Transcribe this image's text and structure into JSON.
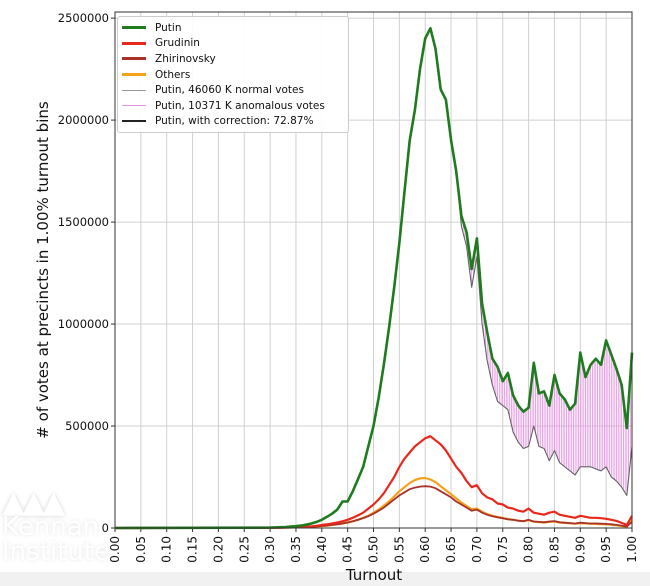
{
  "chart_data": {
    "type": "line",
    "xlabel": "Turnout",
    "ylabel": "# of votes at precincts in 1.00% turnout bins",
    "xlim": [
      0,
      1.0
    ],
    "ylim": [
      0,
      2530000
    ],
    "grid": true,
    "legend_position": "top-left",
    "x_ticks": [
      "0.00",
      "0.05",
      "0.10",
      "0.15",
      "0.20",
      "0.25",
      "0.30",
      "0.35",
      "0.40",
      "0.45",
      "0.50",
      "0.55",
      "0.60",
      "0.65",
      "0.70",
      "0.75",
      "0.80",
      "0.85",
      "0.90",
      "0.95",
      "1.00"
    ],
    "y_ticks": [
      "0",
      "500000",
      "1000000",
      "1500000",
      "2000000",
      "2500000"
    ],
    "x": [
      0.3,
      0.31,
      0.32,
      0.33,
      0.34,
      0.35,
      0.36,
      0.37,
      0.38,
      0.39,
      0.4,
      0.41,
      0.42,
      0.43,
      0.44,
      0.45,
      0.46,
      0.47,
      0.48,
      0.49,
      0.5,
      0.51,
      0.52,
      0.53,
      0.54,
      0.55,
      0.56,
      0.57,
      0.58,
      0.59,
      0.6,
      0.61,
      0.62,
      0.63,
      0.64,
      0.65,
      0.66,
      0.67,
      0.68,
      0.69,
      0.7,
      0.71,
      0.72,
      0.73,
      0.74,
      0.75,
      0.76,
      0.77,
      0.78,
      0.79,
      0.8,
      0.81,
      0.82,
      0.83,
      0.84,
      0.85,
      0.86,
      0.87,
      0.88,
      0.89,
      0.9,
      0.91,
      0.92,
      0.93,
      0.94,
      0.95,
      0.96,
      0.97,
      0.98,
      0.99,
      1.0
    ],
    "series": [
      {
        "name": "Putin",
        "color": "#1e7b1e",
        "values": [
          2000,
          3000,
          4000,
          5000,
          7000,
          9000,
          12000,
          16000,
          22000,
          30000,
          40000,
          55000,
          70000,
          90000,
          130000,
          130000,
          180000,
          240000,
          300000,
          400000,
          500000,
          640000,
          800000,
          980000,
          1180000,
          1400000,
          1650000,
          1900000,
          2050000,
          2250000,
          2400000,
          2450000,
          2350000,
          2150000,
          2100000,
          1900000,
          1750000,
          1530000,
          1450000,
          1270000,
          1420000,
          1100000,
          960000,
          830000,
          790000,
          720000,
          760000,
          650000,
          600000,
          570000,
          590000,
          810000,
          660000,
          670000,
          600000,
          750000,
          660000,
          630000,
          580000,
          610000,
          860000,
          740000,
          800000,
          830000,
          800000,
          920000,
          850000,
          780000,
          700000,
          490000,
          860000
        ]
      },
      {
        "name": "Grudinin",
        "color": "#e8281c",
        "values": [
          1000,
          1500,
          2000,
          2500,
          3000,
          4000,
          5000,
          6500,
          8000,
          11000,
          15000,
          18000,
          22000,
          27000,
          33000,
          40000,
          50000,
          62000,
          75000,
          95000,
          115000,
          140000,
          170000,
          210000,
          250000,
          300000,
          340000,
          370000,
          400000,
          420000,
          440000,
          450000,
          430000,
          410000,
          380000,
          340000,
          300000,
          270000,
          230000,
          200000,
          210000,
          170000,
          150000,
          140000,
          120000,
          115000,
          100000,
          95000,
          85000,
          80000,
          95000,
          75000,
          70000,
          65000,
          75000,
          80000,
          65000,
          60000,
          55000,
          50000,
          60000,
          55000,
          50000,
          50000,
          48000,
          45000,
          40000,
          35000,
          25000,
          15000,
          60000
        ]
      },
      {
        "name": "Zhirinovsky",
        "color": "#a8322a",
        "values": [
          800,
          1000,
          1500,
          2000,
          2500,
          3000,
          4000,
          5000,
          6000,
          8000,
          10000,
          12000,
          15000,
          18000,
          22000,
          27000,
          33000,
          40000,
          48000,
          58000,
          70000,
          85000,
          100000,
          120000,
          140000,
          160000,
          175000,
          190000,
          198000,
          203000,
          205000,
          203000,
          195000,
          180000,
          165000,
          150000,
          130000,
          115000,
          100000,
          85000,
          90000,
          75000,
          65000,
          58000,
          52000,
          48000,
          42000,
          40000,
          36000,
          34000,
          40000,
          32000,
          30000,
          28000,
          32000,
          34000,
          28000,
          26000,
          24000,
          22000,
          26000,
          24000,
          22000,
          22000,
          21000,
          20000,
          18000,
          15000,
          12000,
          8000,
          30000
        ]
      },
      {
        "name": "Others",
        "color": "#f5a21b",
        "values": [
          800,
          1000,
          1500,
          2000,
          2500,
          3000,
          4000,
          5000,
          6000,
          8000,
          10000,
          12000,
          15000,
          18000,
          22000,
          27000,
          33000,
          40000,
          50000,
          60000,
          75000,
          90000,
          110000,
          130000,
          155000,
          180000,
          200000,
          220000,
          235000,
          243000,
          245000,
          238000,
          225000,
          205000,
          185000,
          165000,
          145000,
          125000,
          108000,
          92000,
          95000,
          80000,
          68000,
          60000,
          54000,
          49000,
          44000,
          40000,
          36000,
          33000,
          38000,
          31000,
          29000,
          27000,
          30000,
          32000,
          27000,
          25000,
          23000,
          21000,
          24000,
          22000,
          21000,
          20000,
          19000,
          18000,
          16000,
          13000,
          10000,
          7000,
          40000
        ]
      },
      {
        "name": "Putin, 46060 K normal votes",
        "color": "#999999",
        "values": [
          2000,
          3000,
          4000,
          5000,
          7000,
          9000,
          12000,
          16000,
          22000,
          30000,
          40000,
          55000,
          70000,
          90000,
          130000,
          130000,
          180000,
          240000,
          300000,
          400000,
          500000,
          640000,
          800000,
          980000,
          1180000,
          1400000,
          1650000,
          1900000,
          2050000,
          2250000,
          2400000,
          2450000,
          2350000,
          2150000,
          2100000,
          1900000,
          1750000,
          1480000,
          1380000,
          1180000,
          1330000,
          1000000,
          820000,
          700000,
          620000,
          600000,
          580000,
          470000,
          420000,
          390000,
          400000,
          500000,
          400000,
          390000,
          330000,
          380000,
          320000,
          300000,
          280000,
          260000,
          300000,
          300000,
          300000,
          290000,
          280000,
          300000,
          250000,
          230000,
          200000,
          160000,
          400000
        ]
      },
      {
        "name": "Putin, 10371 K anomalous votes",
        "color": "#e58fe0",
        "fill_between": [
          "Putin, 46060 K normal votes",
          "Putin"
        ],
        "from_x": 0.66
      },
      {
        "name": "Putin, with correction: 72.87%",
        "color": "#222222",
        "same_as": "Putin, 46060 K normal votes"
      }
    ]
  },
  "watermark": {
    "line1": "Kennan",
    "line2": "Institute"
  }
}
